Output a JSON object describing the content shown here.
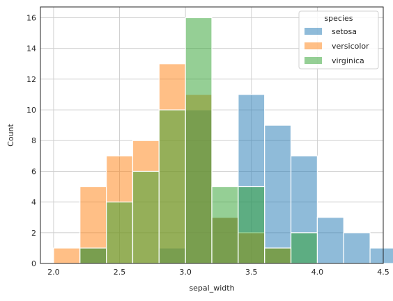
{
  "chart_data": {
    "type": "histogram",
    "xlabel": "sepal_width",
    "ylabel": "Count",
    "xlim": [
      1.9,
      4.5
    ],
    "ylim": [
      0,
      16.7
    ],
    "grid": true,
    "legend_placement": "top-right",
    "legend_title": "species",
    "bin_edges": [
      2.0,
      2.2,
      2.4,
      2.6,
      2.8,
      3.0,
      3.2,
      3.4,
      3.6,
      3.8,
      4.0,
      4.2,
      4.4
    ],
    "x_ticks": [
      2.0,
      2.5,
      3.0,
      3.5,
      4.0,
      4.5
    ],
    "x_tick_labels": [
      "2.0",
      "2.5",
      "3.0",
      "3.5",
      "4.0",
      "4.5"
    ],
    "y_ticks": [
      0,
      2,
      4,
      6,
      8,
      10,
      12,
      14,
      16
    ],
    "y_tick_labels": [
      "0",
      "2",
      "4",
      "6",
      "8",
      "10",
      "12",
      "14",
      "16"
    ],
    "series": [
      {
        "name": "setosa",
        "color": "#1f77b4",
        "values": [
          0,
          1,
          0,
          0,
          1,
          10,
          3,
          11,
          9,
          7,
          3,
          2,
          1
        ]
      },
      {
        "name": "versicolor",
        "color": "#ff7f0e",
        "values": [
          1,
          5,
          7,
          8,
          13,
          11,
          3,
          2,
          1,
          0,
          0,
          0,
          0
        ]
      },
      {
        "name": "virginica",
        "color": "#2ca02c",
        "values": [
          0,
          1,
          4,
          6,
          10,
          16,
          5,
          5,
          1,
          2,
          0,
          0,
          0
        ]
      }
    ],
    "bar_opacity": 0.5
  }
}
